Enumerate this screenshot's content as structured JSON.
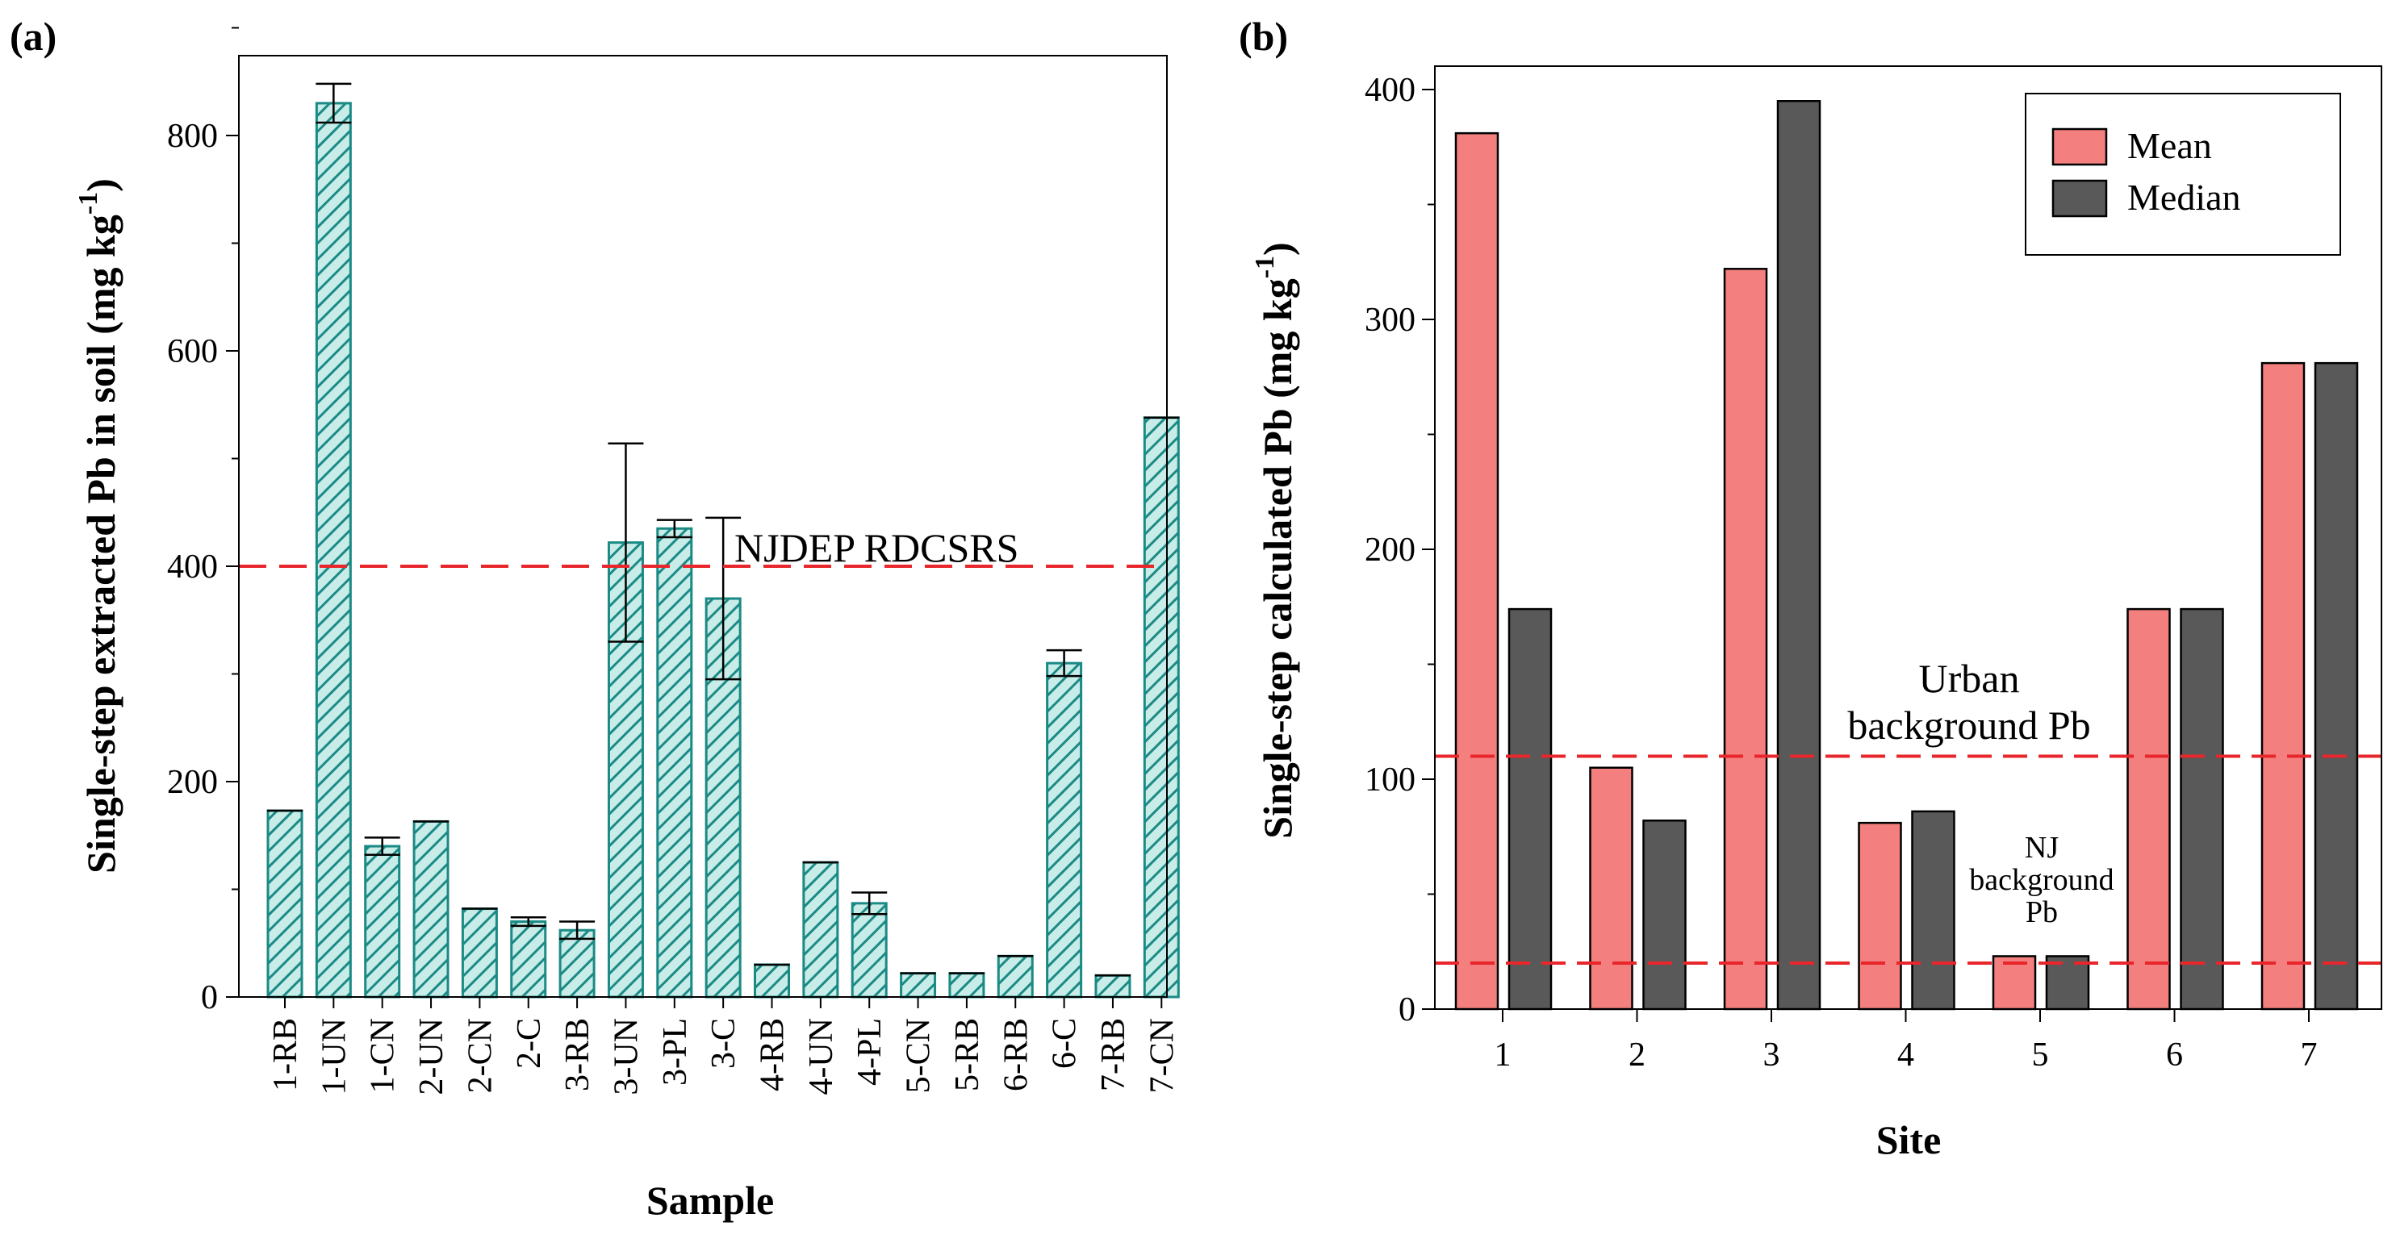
{
  "chart_data": [
    {
      "panel": "(a)",
      "type": "bar",
      "xlabel": "Sample",
      "ylabel": "Single-step extracted Pb in soil (mg kg",
      "ylabel_sup": "-1",
      "ylabel_close": ")",
      "ylim": [
        0,
        900
      ],
      "yticks": [
        0,
        200,
        400,
        600,
        800
      ],
      "colors": {
        "bar_fill": "#c8ece8",
        "bar_hatch": "#1b8a85",
        "ref_line": "#e8262b"
      },
      "categories": [
        "1-RB",
        "1-UN",
        "1-CN",
        "2-UN",
        "2-CN",
        "2-C",
        "3-RB",
        "3-UN",
        "3-PL",
        "3-C",
        "4-RB",
        "4-UN",
        "4-PL",
        "5-CN",
        "5-RB",
        "6-RB",
        "6-C",
        "7-RB",
        "7-CN"
      ],
      "values": [
        173,
        830,
        140,
        163,
        82,
        70,
        62,
        422,
        435,
        370,
        30,
        125,
        87,
        22,
        22,
        38,
        310,
        20,
        538
      ],
      "errors": [
        0,
        18,
        8,
        0,
        0,
        4,
        8,
        92,
        8,
        75,
        0,
        0,
        10,
        0,
        0,
        0,
        12,
        0,
        0
      ],
      "reference_lines": [
        {
          "value": 400,
          "label": "NJDEP RDCSRS"
        }
      ]
    },
    {
      "panel": "(b)",
      "type": "bar",
      "xlabel": "Site",
      "ylabel": "Single-step calculated Pb (mg kg",
      "ylabel_sup": "-1",
      "ylabel_close": ")",
      "ylim": [
        0,
        400
      ],
      "yticks": [
        0,
        100,
        200,
        300,
        400
      ],
      "categories": [
        "1",
        "2",
        "3",
        "4",
        "5",
        "6",
        "7"
      ],
      "series": [
        {
          "name": "Mean",
          "color": "#f47f7f",
          "values": [
            381,
            105,
            322,
            81,
            23,
            174,
            281
          ]
        },
        {
          "name": "Median",
          "color": "#595959",
          "values": [
            174,
            82,
            395,
            86,
            23,
            174,
            281
          ]
        }
      ],
      "legend_position": "top-right",
      "reference_lines": [
        {
          "value": 110,
          "label_lines": [
            "Urban",
            "background Pb"
          ]
        },
        {
          "value": 20,
          "label_lines": [
            "NJ",
            "background",
            "Pb"
          ]
        }
      ],
      "colors": {
        "ref_line": "#e8262b"
      }
    }
  ]
}
